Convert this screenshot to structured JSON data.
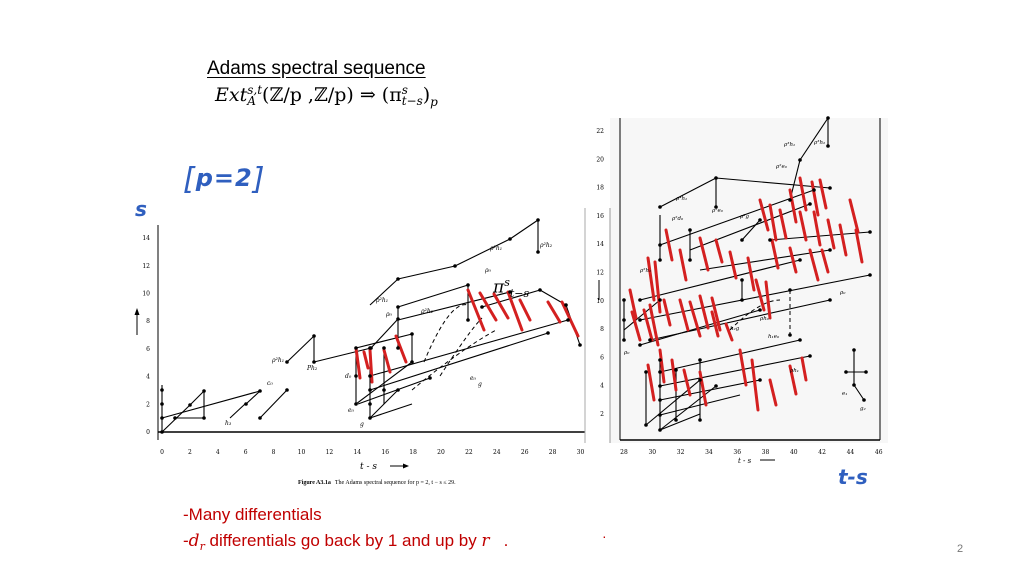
{
  "title": "Adams spectral sequence",
  "formula": {
    "ext": "Ext",
    "sup": "s,t",
    "sub": "A",
    "args": "(ℤ/p ,ℤ/p) ⇒ (π",
    "pi_sup": "s",
    "pi_sub": "t−s",
    "close": ")",
    "p_sub": "p"
  },
  "annotations": {
    "p_label": "p=2",
    "s_axis": "s",
    "ts_axis": "t-s",
    "pi_symbol": "π",
    "pi_sup": "s",
    "pi_sub": "t−s"
  },
  "left_chart": {
    "y_ticks": [
      "0",
      "2",
      "4",
      "6",
      "8",
      "10",
      "12",
      "14"
    ],
    "x_ticks": [
      "0",
      "2",
      "4",
      "6",
      "8",
      "10",
      "12",
      "14",
      "16",
      "18",
      "20",
      "22",
      "24",
      "26",
      "28",
      "30"
    ],
    "x_axis_label": "t - s",
    "caption_bold": "Figure A3.1a",
    "caption": "The Adams spectral sequence for p = 2, t − s ≤ 29."
  },
  "right_chart": {
    "y_ticks": [
      "2",
      "4",
      "6",
      "8",
      "10",
      "12",
      "14",
      "16",
      "18",
      "20",
      "22"
    ],
    "x_ticks": [
      "28",
      "30",
      "32",
      "34",
      "36",
      "38",
      "40",
      "42",
      "44",
      "46"
    ],
    "x_axis_label": "t - s"
  },
  "bullets": {
    "line1": "-Many differentials",
    "line2_dash": "-",
    "line2_d": "d",
    "line2_r": "r",
    "line2_rest": " differentials go back by 1 and up by ",
    "line2_r2": "r",
    "line2_dot": "."
  },
  "page_number": "2",
  "colors": {
    "ink": "#000000",
    "hand_blue": "#2f5fbf",
    "differential_red": "#d42020",
    "bullet_red": "#c00000"
  }
}
